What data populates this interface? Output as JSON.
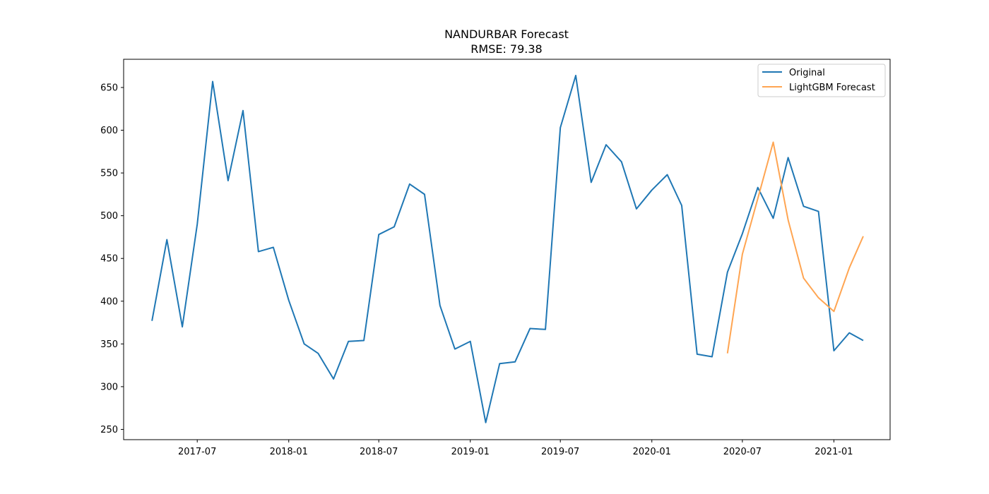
{
  "chart_data": {
    "type": "line",
    "title": "NANDURBAR Forecast",
    "subtitle": "RMSE: 79.38",
    "xlabel": "",
    "ylabel": "",
    "ylim": [
      238,
      683
    ],
    "xlim": [
      "2017-02-03",
      "2021-04-24"
    ],
    "yticks": [
      250,
      300,
      350,
      400,
      450,
      500,
      550,
      600,
      650
    ],
    "xticks": [
      "2017-07",
      "2018-01",
      "2018-07",
      "2019-01",
      "2019-07",
      "2020-01",
      "2020-07",
      "2021-01"
    ],
    "grid": false,
    "legend": "top-right",
    "colors": {
      "Original": "#1f77b4",
      "LightGBM Forecast": "#ffa552"
    },
    "series": [
      {
        "name": "Original",
        "x": [
          "2017-04",
          "2017-05",
          "2017-06",
          "2017-07",
          "2017-08",
          "2017-09",
          "2017-10",
          "2017-11",
          "2017-12",
          "2018-01",
          "2018-02",
          "2018-03",
          "2018-04",
          "2018-05",
          "2018-06",
          "2018-07",
          "2018-08",
          "2018-09",
          "2018-10",
          "2018-11",
          "2018-12",
          "2019-01",
          "2019-02",
          "2019-03",
          "2019-04",
          "2019-05",
          "2019-06",
          "2019-07",
          "2019-08",
          "2019-09",
          "2019-10",
          "2019-11",
          "2019-12",
          "2020-01",
          "2020-02",
          "2020-03",
          "2020-04",
          "2020-05",
          "2020-06",
          "2020-07",
          "2020-08",
          "2020-09",
          "2020-10",
          "2020-11",
          "2020-12",
          "2021-01",
          "2021-02",
          "2021-03"
        ],
        "values": [
          377,
          472,
          370,
          490,
          657,
          541,
          623,
          458,
          463,
          401,
          350,
          339,
          309,
          353,
          354,
          478,
          487,
          537,
          525,
          395,
          344,
          353,
          258,
          327,
          329,
          368,
          367,
          603,
          664,
          539,
          583,
          563,
          508,
          530,
          548,
          512,
          338,
          335,
          434,
          479,
          533,
          497,
          568,
          511,
          505,
          342,
          363,
          354
        ]
      },
      {
        "name": "LightGBM Forecast",
        "x": [
          "2020-06",
          "2020-07",
          "2020-08",
          "2020-09",
          "2020-10",
          "2020-11",
          "2020-12",
          "2021-01",
          "2021-02",
          "2021-03"
        ],
        "values": [
          339,
          455,
          520,
          586,
          495,
          427,
          404,
          388,
          439,
          476
        ]
      }
    ]
  }
}
